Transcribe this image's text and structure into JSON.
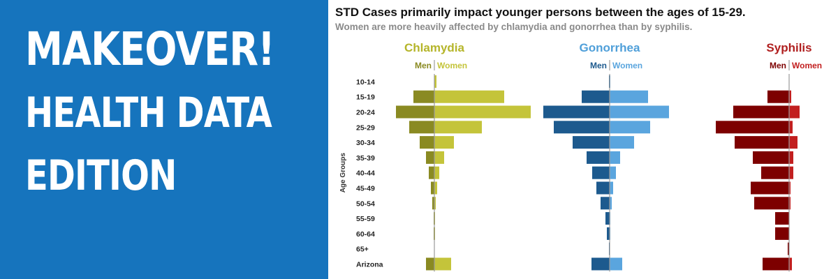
{
  "banner": {
    "headline": "MAKEOVER!",
    "line1": "HEALTH DATA",
    "line2": "EDITION",
    "background": "#1674bd"
  },
  "chart_data": {
    "type": "bar",
    "title": "STD Cases primarily impact younger persons between the ages of 15-29.",
    "subtitle": "Women are more heavily affected by chlamydia and gonorrhea than by syphilis.",
    "ylabel": "Age Groups",
    "categories": [
      "10-14",
      "15-19",
      "20-24",
      "25-29",
      "30-34",
      "35-39",
      "40-44",
      "45-49",
      "50-54",
      "55-59",
      "60-64",
      "65+",
      "Arizona"
    ],
    "panels": [
      {
        "name": "Chlamydia",
        "men_label": "Men",
        "women_label": "Women",
        "colors": {
          "title": "#b5b52a",
          "men": "#8a8a22",
          "women": "#c4c43a"
        },
        "men": [
          0,
          30,
          55,
          36,
          21,
          12,
          8,
          5,
          3,
          1,
          1,
          0,
          12
        ],
        "women": [
          3,
          100,
          138,
          68,
          28,
          14,
          7,
          4,
          2,
          1,
          1,
          0,
          24
        ]
      },
      {
        "name": "Gonorrhea",
        "men_label": "Men",
        "women_label": "Women",
        "colors": {
          "title": "#4f9fd9",
          "men": "#1d5a8e",
          "women": "#5aa5de"
        },
        "men": [
          1,
          40,
          95,
          80,
          53,
          33,
          25,
          19,
          13,
          6,
          4,
          1,
          26
        ],
        "women": [
          1,
          55,
          85,
          58,
          35,
          15,
          9,
          5,
          3,
          1,
          1,
          0,
          18
        ]
      },
      {
        "name": "Syphilis",
        "men_label": "Men",
        "women_label": "Women",
        "colors": {
          "title": "#b01f1f",
          "men": "#7d0000",
          "women": "#c21f1f"
        },
        "men": [
          0,
          31,
          80,
          105,
          78,
          52,
          40,
          55,
          50,
          20,
          20,
          2,
          38
        ],
        "women": [
          0,
          3,
          15,
          5,
          12,
          6,
          6,
          2,
          2,
          0,
          0,
          0,
          4
        ]
      }
    ],
    "grid": false,
    "legend": "top"
  }
}
